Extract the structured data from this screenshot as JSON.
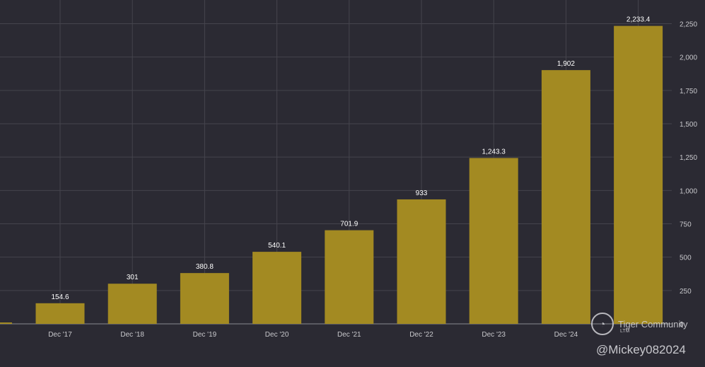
{
  "chart_data": {
    "type": "bar",
    "categories": [
      "Dec '17",
      "Dec '18",
      "Dec '19",
      "Dec '20",
      "Dec '21",
      "Dec '22",
      "Dec '23",
      "Dec '24",
      ""
    ],
    "values": [
      154.6,
      301,
      380.8,
      540.1,
      701.9,
      933,
      1243.3,
      1902,
      2233.4
    ],
    "data_labels": [
      "154.6",
      "301",
      "380.8",
      "540.1",
      "701.9",
      "933",
      "1,243.3",
      "1,902",
      "2,233.4"
    ],
    "y_ticks": [
      0,
      250,
      500,
      750,
      1000,
      1250,
      1500,
      1750,
      2000,
      2250
    ],
    "y_tick_labels": [
      "0",
      "250",
      "500",
      "750",
      "1,000",
      "1,250",
      "1,500",
      "1,750",
      "2,000",
      "2,250"
    ],
    "ylim": [
      0,
      2250
    ],
    "y_axis_side": "right",
    "grid": true,
    "title": "",
    "xlabel": "",
    "ylabel": "",
    "colors": {
      "background": "#2b2a33",
      "bar": "#a38a22",
      "grid": "#45444d",
      "text": "#c8c8cc"
    }
  },
  "watermark": {
    "logo_icon": "tiger-logo-icon",
    "brand": "Tiger Community",
    "user": "@Mickey082024",
    "sub_text": "LTM"
  }
}
